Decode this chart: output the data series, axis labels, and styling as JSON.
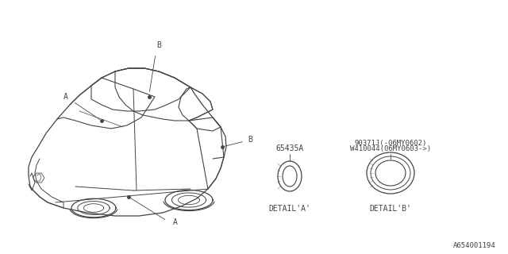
{
  "bg_color": "#ffffff",
  "diagram_number": "A654001194",
  "part_a_number": "65435A",
  "part_b_number_line1": "90371J(-06MY0602)",
  "part_b_number_line2": "W410044(06MY0603->)",
  "detail_a_label": "DETAIL'A'",
  "detail_b_label": "DETAIL'B'",
  "label_a": "A",
  "label_b": "B",
  "car_color": "#444444",
  "line_width": 0.8
}
